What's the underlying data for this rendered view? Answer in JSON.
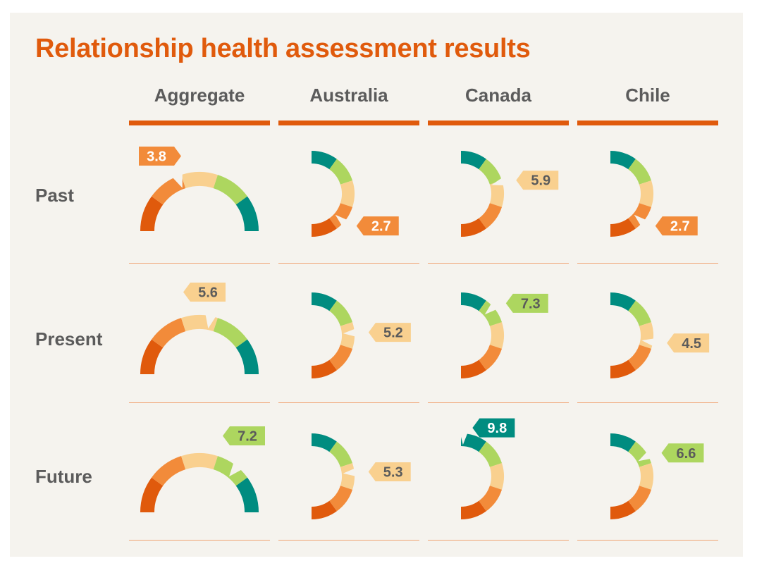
{
  "title": "Relationship health assessment results",
  "columns": [
    "Aggregate",
    "Australia",
    "Canada",
    "Chile"
  ],
  "rows": [
    "Past",
    "Present",
    "Future"
  ],
  "scale": {
    "min": 0,
    "max": 10
  },
  "segment_colors": [
    "#e05a0c",
    "#f28b3a",
    "#f9d08f",
    "#add65f",
    "#008c80"
  ],
  "chart_data": {
    "type": "gauge",
    "title": "Relationship health assessment results",
    "categories": [
      "Aggregate",
      "Australia",
      "Canada",
      "Chile"
    ],
    "series": [
      {
        "name": "Past",
        "values": [
          3.8,
          2.7,
          5.9,
          2.7
        ]
      },
      {
        "name": "Present",
        "values": [
          5.6,
          5.2,
          7.3,
          4.5
        ]
      },
      {
        "name": "Future",
        "values": [
          7.2,
          5.3,
          9.8,
          6.6
        ]
      }
    ],
    "value_labels": [
      [
        "3.8",
        "2.7",
        "5.9",
        "2.7"
      ],
      [
        "5.6",
        "5.2",
        "7.3",
        "4.5"
      ],
      [
        "7.2",
        "5.3",
        "9.8",
        "6.6"
      ]
    ],
    "ylim": [
      0,
      10
    ]
  }
}
